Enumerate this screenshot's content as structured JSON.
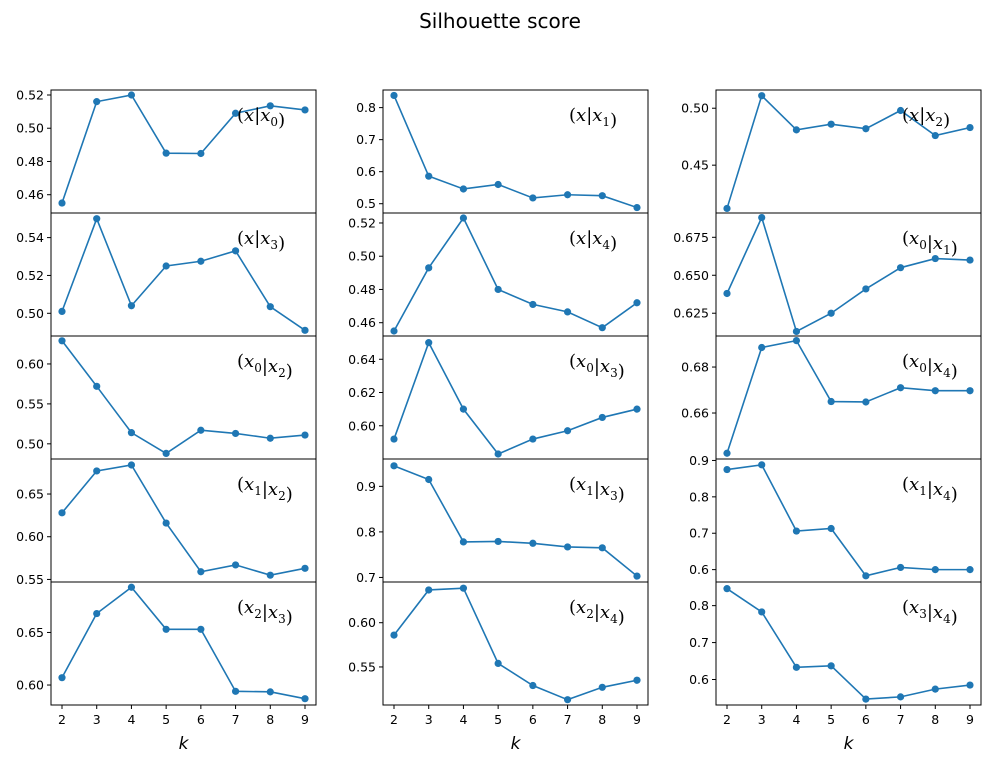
{
  "figure": {
    "title": "Silhouette score",
    "xlabel": "k"
  },
  "colors": {
    "series": "#1f77b4"
  },
  "chart_data": [
    {
      "type": "line",
      "title": "(x|x0)",
      "x": [
        2,
        3,
        4,
        5,
        6,
        7,
        8,
        9
      ],
      "values": [
        0.455,
        0.516,
        0.52,
        0.485,
        0.4848,
        0.509,
        0.5135,
        0.511
      ],
      "ylim": [
        0.449,
        0.523
      ],
      "yticks": [
        "0.46",
        "0.48",
        "0.50",
        "0.52"
      ],
      "ytick_values": [
        0.46,
        0.48,
        0.5,
        0.52
      ]
    },
    {
      "type": "line",
      "title": "(x|x1)",
      "x": [
        2,
        3,
        4,
        5,
        6,
        7,
        8,
        9
      ],
      "values": [
        0.838,
        0.586,
        0.546,
        0.56,
        0.518,
        0.528,
        0.525,
        0.488
      ],
      "ylim": [
        0.471,
        0.855
      ],
      "yticks": [
        "0.5",
        "0.6",
        "0.7",
        "0.8"
      ],
      "ytick_values": [
        0.5,
        0.6,
        0.7,
        0.8
      ]
    },
    {
      "type": "line",
      "title": "(x|x2)",
      "x": [
        2,
        3,
        4,
        5,
        6,
        7,
        8,
        9
      ],
      "values": [
        0.412,
        0.511,
        0.481,
        0.486,
        0.482,
        0.498,
        0.476,
        0.483
      ],
      "ylim": [
        0.408,
        0.516
      ],
      "yticks": [
        "0.45",
        "0.50"
      ],
      "ytick_values": [
        0.45,
        0.5
      ]
    },
    {
      "type": "line",
      "title": "(x|x3)",
      "x": [
        2,
        3,
        4,
        5,
        6,
        7,
        8,
        9
      ],
      "values": [
        0.501,
        0.55,
        0.504,
        0.525,
        0.5275,
        0.533,
        0.5035,
        0.491
      ],
      "ylim": [
        0.488,
        0.553
      ],
      "yticks": [
        "0.50",
        "0.52",
        "0.54"
      ],
      "ytick_values": [
        0.5,
        0.52,
        0.54
      ]
    },
    {
      "type": "line",
      "title": "(x|x4)",
      "x": [
        2,
        3,
        4,
        5,
        6,
        7,
        8,
        9
      ],
      "values": [
        0.455,
        0.493,
        0.523,
        0.48,
        0.471,
        0.4665,
        0.457,
        0.472
      ],
      "ylim": [
        0.452,
        0.526
      ],
      "yticks": [
        "0.46",
        "0.48",
        "0.50",
        "0.52"
      ],
      "ytick_values": [
        0.46,
        0.48,
        0.5,
        0.52
      ]
    },
    {
      "type": "line",
      "title": "(x0|x1)",
      "x": [
        2,
        3,
        4,
        5,
        6,
        7,
        8,
        9
      ],
      "values": [
        0.638,
        0.688,
        0.613,
        0.625,
        0.641,
        0.655,
        0.661,
        0.66
      ],
      "ylim": [
        0.61,
        0.691
      ],
      "yticks": [
        "0.625",
        "0.650",
        "0.675"
      ],
      "ytick_values": [
        0.625,
        0.65,
        0.675
      ]
    },
    {
      "type": "line",
      "title": "(x0|x2)",
      "x": [
        2,
        3,
        4,
        5,
        6,
        7,
        8,
        9
      ],
      "values": [
        0.629,
        0.572,
        0.514,
        0.488,
        0.517,
        0.513,
        0.507,
        0.511
      ],
      "ylim": [
        0.481,
        0.635
      ],
      "yticks": [
        "0.50",
        "0.55",
        "0.60"
      ],
      "ytick_values": [
        0.5,
        0.55,
        0.6
      ]
    },
    {
      "type": "line",
      "title": "(x0|x3)",
      "x": [
        2,
        3,
        4,
        5,
        6,
        7,
        8,
        9
      ],
      "values": [
        0.592,
        0.65,
        0.61,
        0.583,
        0.592,
        0.597,
        0.605,
        0.61
      ],
      "ylim": [
        0.58,
        0.654
      ],
      "yticks": [
        "0.60",
        "0.62",
        "0.64"
      ],
      "ytick_values": [
        0.6,
        0.62,
        0.64
      ]
    },
    {
      "type": "line",
      "title": "(x0|x4)",
      "x": [
        2,
        3,
        4,
        5,
        6,
        7,
        8,
        9
      ],
      "values": [
        0.6425,
        0.6885,
        0.6915,
        0.665,
        0.6648,
        0.671,
        0.6697,
        0.6697
      ],
      "ylim": [
        0.64,
        0.6935
      ],
      "yticks": [
        "0.66",
        "0.68"
      ],
      "ytick_values": [
        0.66,
        0.68
      ]
    },
    {
      "type": "line",
      "title": "(x1|x2)",
      "x": [
        2,
        3,
        4,
        5,
        6,
        7,
        8,
        9
      ],
      "values": [
        0.628,
        0.677,
        0.684,
        0.616,
        0.559,
        0.567,
        0.555,
        0.563
      ],
      "ylim": [
        0.547,
        0.691
      ],
      "yticks": [
        "0.55",
        "0.60",
        "0.65"
      ],
      "ytick_values": [
        0.55,
        0.6,
        0.65
      ]
    },
    {
      "type": "line",
      "title": "(x1|x3)",
      "x": [
        2,
        3,
        4,
        5,
        6,
        7,
        8,
        9
      ],
      "values": [
        0.945,
        0.915,
        0.778,
        0.779,
        0.775,
        0.767,
        0.765,
        0.703
      ],
      "ylim": [
        0.69,
        0.96
      ],
      "yticks": [
        "0.7",
        "0.8",
        "0.9"
      ],
      "ytick_values": [
        0.7,
        0.8,
        0.9
      ]
    },
    {
      "type": "line",
      "title": "(x1|x4)",
      "x": [
        2,
        3,
        4,
        5,
        6,
        7,
        8,
        9
      ],
      "values": [
        0.875,
        0.888,
        0.706,
        0.713,
        0.583,
        0.606,
        0.6,
        0.6
      ],
      "ylim": [
        0.566,
        0.904
      ],
      "yticks": [
        "0.6",
        "0.7",
        "0.8",
        "0.9"
      ],
      "ytick_values": [
        0.6,
        0.7,
        0.8,
        0.9
      ]
    },
    {
      "type": "line",
      "title": "(x2|x3)",
      "x": [
        2,
        3,
        4,
        5,
        6,
        7,
        8,
        9
      ],
      "values": [
        0.607,
        0.668,
        0.693,
        0.653,
        0.653,
        0.594,
        0.5935,
        0.587
      ],
      "ylim": [
        0.581,
        0.698
      ],
      "yticks": [
        "0.60",
        "0.65"
      ],
      "ytick_values": [
        0.6,
        0.65
      ]
    },
    {
      "type": "line",
      "title": "(x2|x4)",
      "x": [
        2,
        3,
        4,
        5,
        6,
        7,
        8,
        9
      ],
      "values": [
        0.586,
        0.637,
        0.639,
        0.554,
        0.529,
        0.513,
        0.527,
        0.535
      ],
      "ylim": [
        0.507,
        0.646
      ],
      "yticks": [
        "0.55",
        "0.60"
      ],
      "ytick_values": [
        0.55,
        0.6
      ]
    },
    {
      "type": "line",
      "title": "(x3|x4)",
      "x": [
        2,
        3,
        4,
        5,
        6,
        7,
        8,
        9
      ],
      "values": [
        0.846,
        0.783,
        0.633,
        0.637,
        0.547,
        0.553,
        0.574,
        0.585
      ],
      "ylim": [
        0.531,
        0.864
      ],
      "yticks": [
        "0.6",
        "0.7",
        "0.8"
      ],
      "ytick_values": [
        0.6,
        0.7,
        0.8
      ]
    }
  ]
}
